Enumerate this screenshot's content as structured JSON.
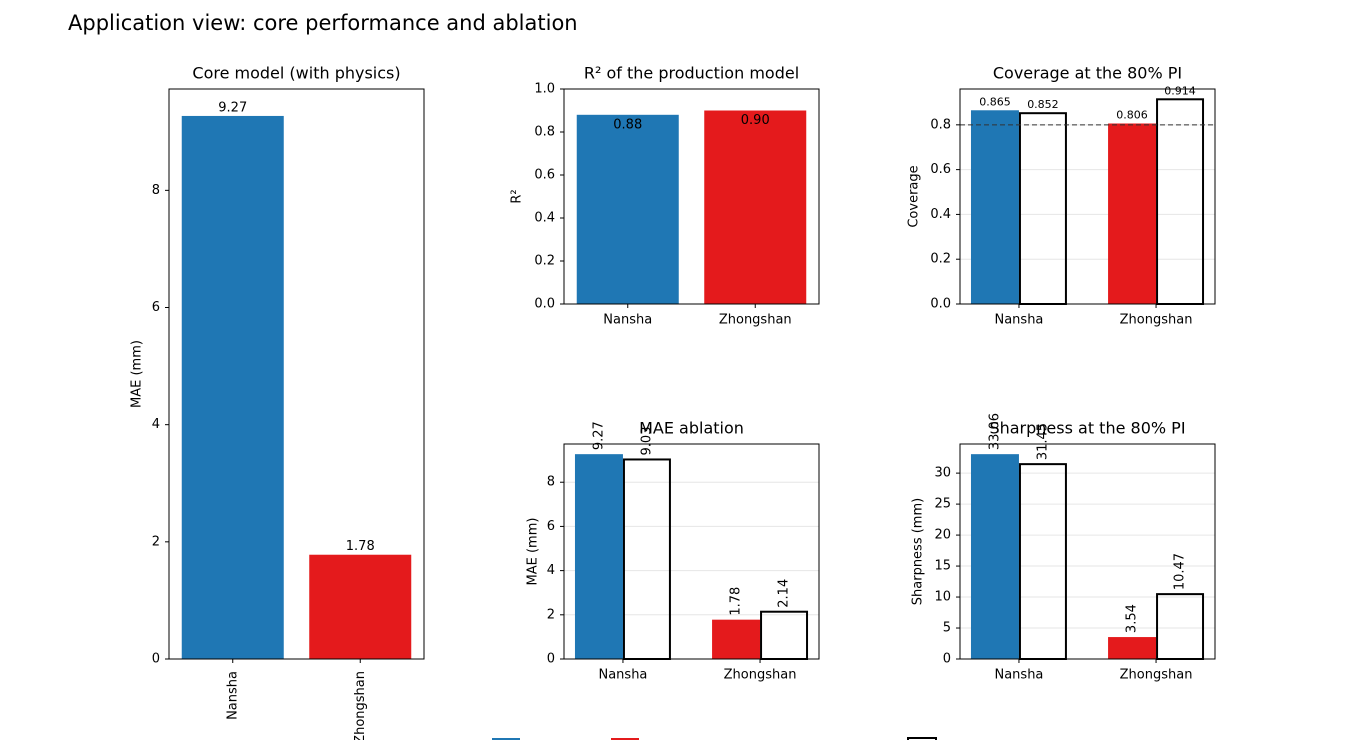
{
  "title": "Application view: core performance and ablation",
  "chart_data": [
    {
      "type": "bar",
      "title": "Core model (with physics)",
      "ylabel": "MAE (mm)",
      "categories": [
        "Nansha",
        "Zhongshan"
      ],
      "values": [
        9.27,
        1.78
      ],
      "colors": [
        "#1f77b4",
        "#e41a1c"
      ],
      "ylim": [
        0,
        9.73
      ],
      "yticks": [
        0,
        2,
        4,
        6,
        8
      ],
      "grid": false
    },
    {
      "type": "bar",
      "title": "R² of the production model",
      "ylabel": "R²",
      "categories": [
        "Nansha",
        "Zhongshan"
      ],
      "values": [
        0.88,
        0.9
      ],
      "value_labels": [
        "0.88",
        "0.90"
      ],
      "colors": [
        "#1f77b4",
        "#e41a1c"
      ],
      "ylim": [
        0,
        1
      ],
      "yticks": [
        {
          "value": 0,
          "label": "0.0"
        },
        {
          "value": 0.2,
          "label": "0.2"
        },
        {
          "value": 0.4,
          "label": "0.4"
        },
        {
          "value": 0.6,
          "label": "0.6"
        },
        {
          "value": 0.8,
          "label": "0.8"
        },
        {
          "value": 1,
          "label": "1.0"
        }
      ],
      "grid": false
    },
    {
      "type": "grouped_bar",
      "title": "Coverage at the 80% PI",
      "ylabel": "Coverage",
      "categories": [
        "Nansha",
        "Zhongshan"
      ],
      "series": [
        {
          "colors": [
            "#1f77b4",
            "#e41a1c"
          ],
          "values": [
            0.865,
            0.806
          ]
        },
        {
          "color": "none",
          "edgecolor": "#000000",
          "values": [
            0.852,
            0.914
          ]
        }
      ],
      "reference_line": 0.8,
      "ylim": [
        0,
        0.96
      ],
      "yticks": [
        {
          "value": 0,
          "label": "0.0"
        },
        {
          "value": 0.2,
          "label": "0.2"
        },
        {
          "value": 0.4,
          "label": "0.4"
        },
        {
          "value": 0.6,
          "label": "0.6"
        },
        {
          "value": 0.8,
          "label": "0.8"
        }
      ],
      "grid": true
    },
    {
      "type": "grouped_bar",
      "title": "MAE ablation",
      "ylabel": "MAE (mm)",
      "categories": [
        "Nansha",
        "Zhongshan"
      ],
      "series": [
        {
          "colors": [
            "#1f77b4",
            "#e41a1c"
          ],
          "values": [
            9.27,
            1.78
          ]
        },
        {
          "color": "none",
          "edgecolor": "#000000",
          "values": [
            9.03,
            2.14
          ]
        }
      ],
      "ylim": [
        0,
        9.73
      ],
      "yticks": [
        0,
        2,
        4,
        6,
        8
      ],
      "grid": true
    },
    {
      "type": "grouped_bar",
      "title": "Sharpness at the 80% PI",
      "ylabel": "Sharpness (mm)",
      "categories": [
        "Nansha",
        "Zhongshan"
      ],
      "series": [
        {
          "colors": [
            "#1f77b4",
            "#e41a1c"
          ],
          "values": [
            33.06,
            3.54
          ]
        },
        {
          "color": "none",
          "edgecolor": "#000000",
          "values": [
            31.45,
            10.47
          ]
        }
      ],
      "ylim": [
        0,
        34.7
      ],
      "yticks": [
        0,
        5,
        10,
        15,
        20,
        25,
        30
      ],
      "grid": true
    }
  ]
}
